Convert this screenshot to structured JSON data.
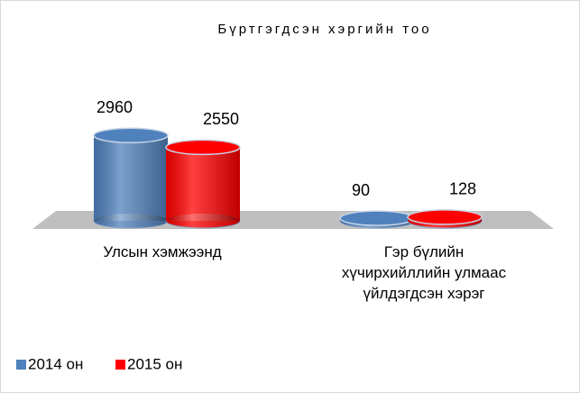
{
  "chart_data": {
    "type": "cylinder-bar",
    "title": "Бүртгэгдсэн хэргийн тоо",
    "categories": [
      "Улсын хэмжээнд",
      "Гэр бүлийн хүчирхийллийн улмаас үйлдэгдсэн хэрэг"
    ],
    "series": [
      {
        "name": "2014 он",
        "color": "#4f81bd",
        "values": [
          2960,
          90
        ]
      },
      {
        "name": "2015 он",
        "color": "#ff0000",
        "values": [
          2550,
          128
        ]
      }
    ],
    "legend": "bottom-left"
  }
}
